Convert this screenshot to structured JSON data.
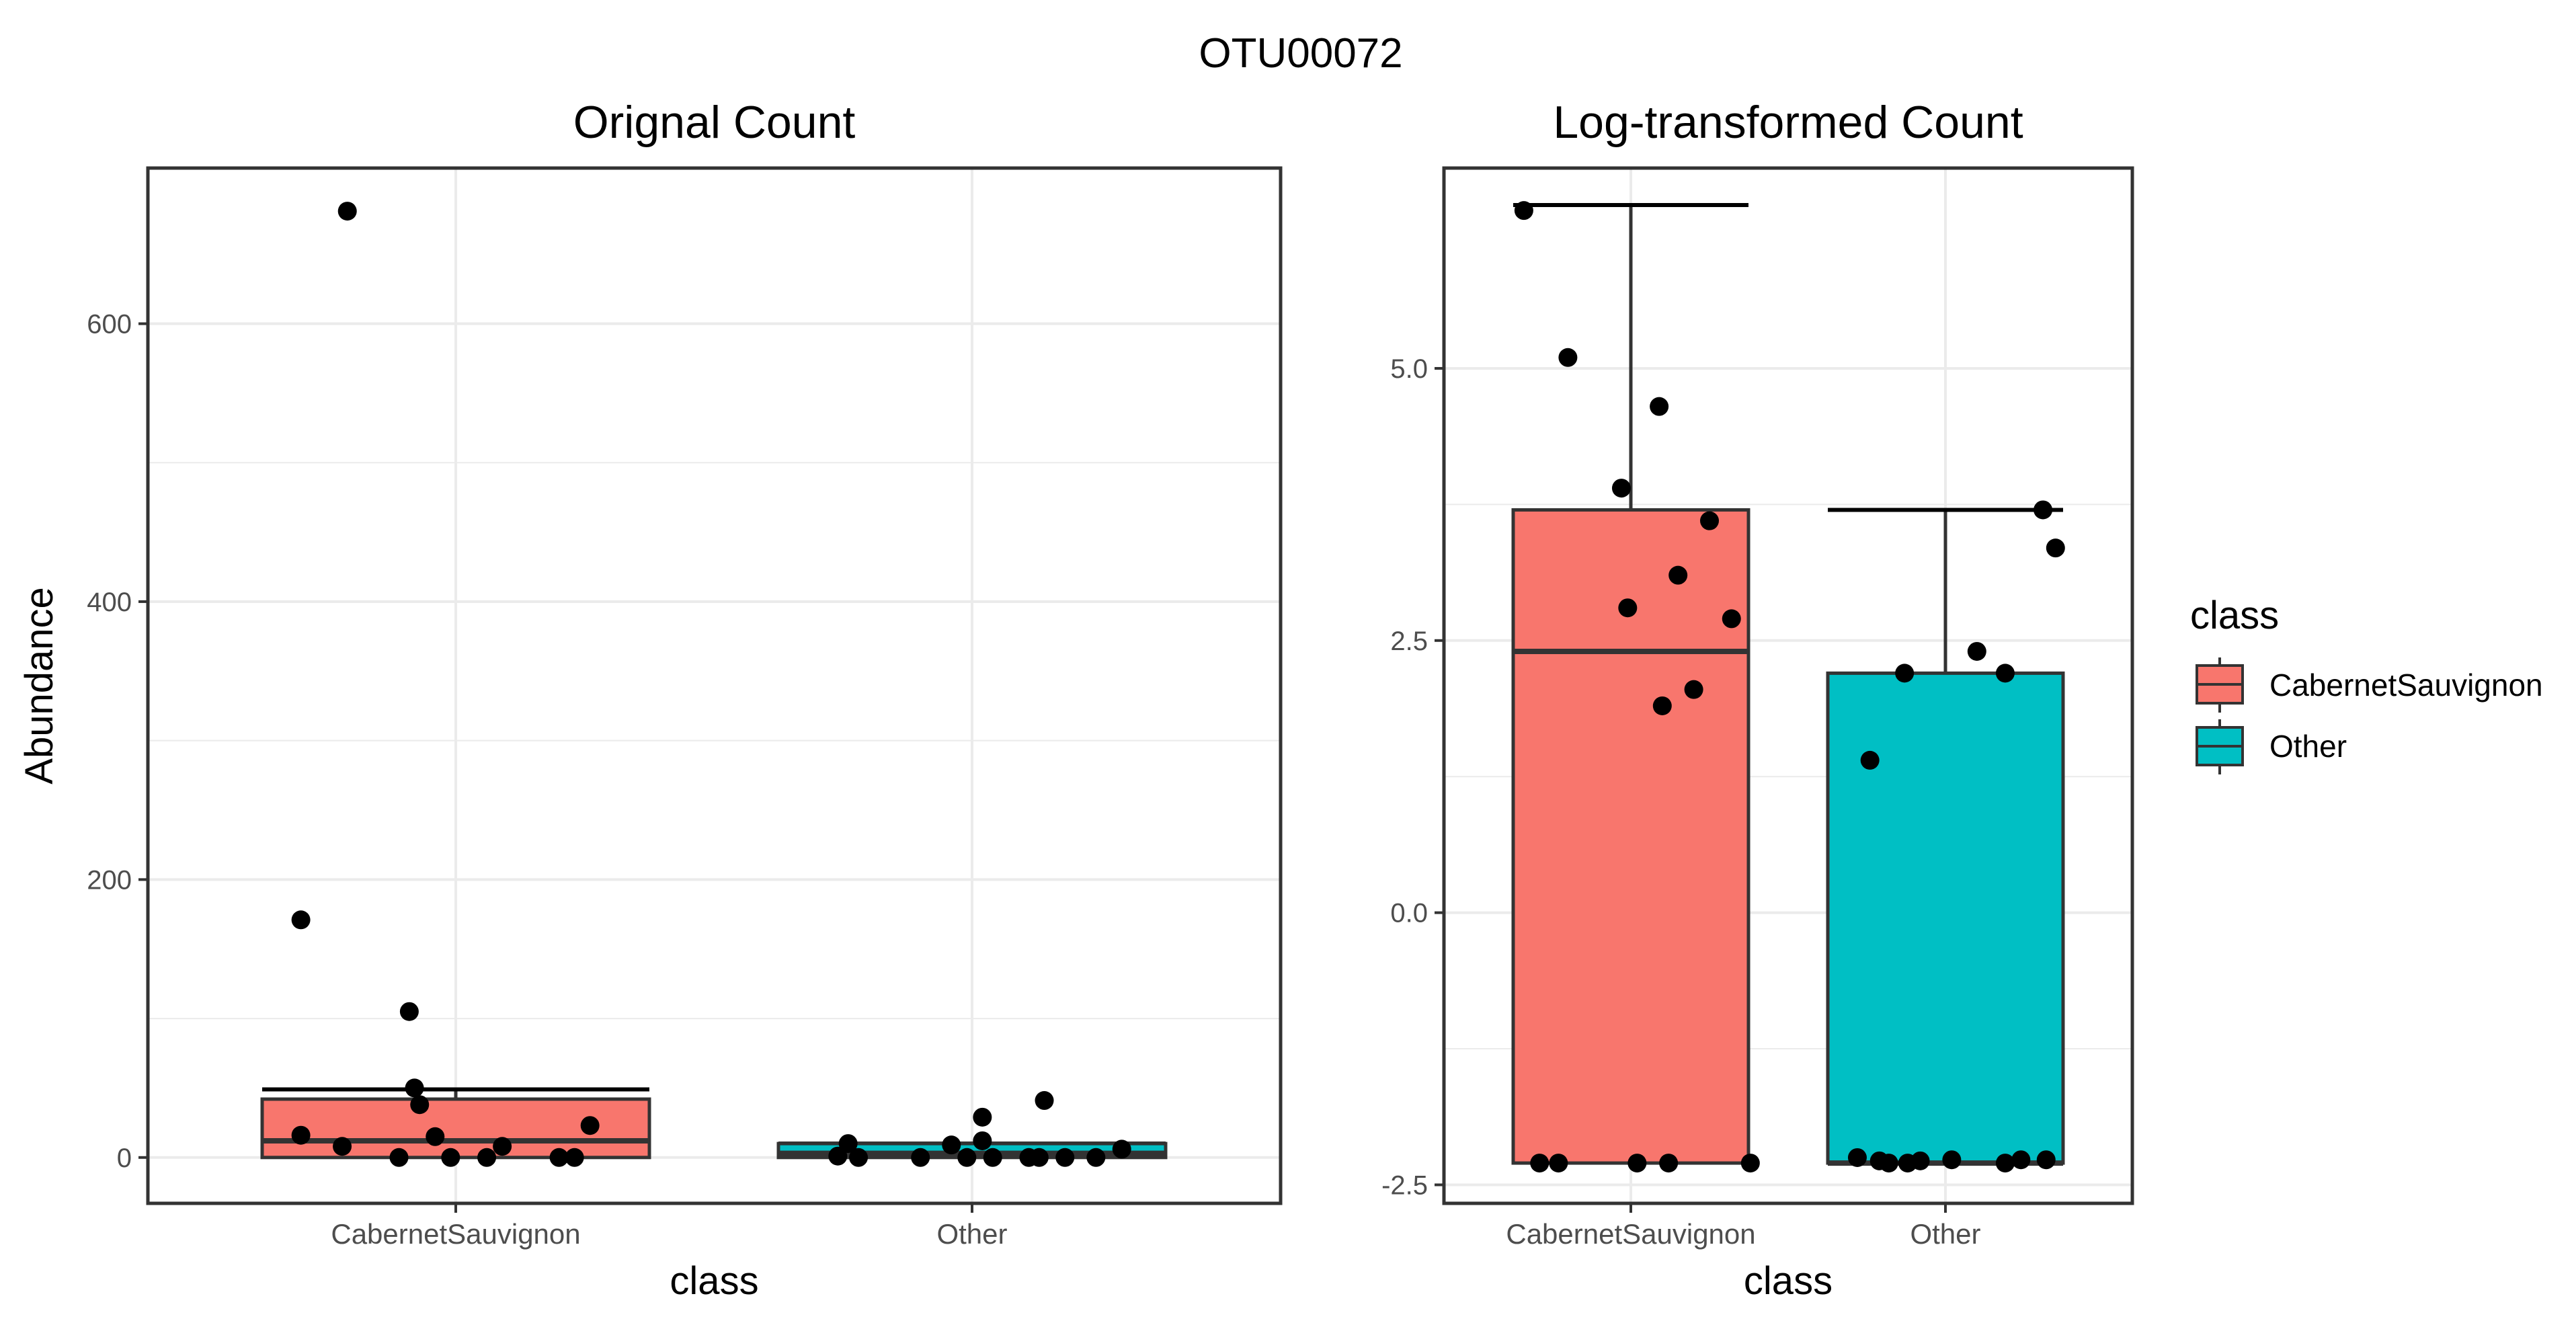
{
  "figure_title": "OTU00072",
  "colors": {
    "CabernetSauvignon": "#F8766D",
    "Other": "#00BFC4",
    "grid": "#ebebeb",
    "panel_border": "#333333",
    "point": "#000000",
    "tick_text": "#4d4d4d"
  },
  "legend": {
    "title": "class",
    "items": [
      {
        "label": "CabernetSauvignon",
        "color": "#F8766D"
      },
      {
        "label": "Other",
        "color": "#00BFC4"
      }
    ]
  },
  "chart_data": [
    {
      "type": "box",
      "title": "Orignal Count",
      "xlabel": "class",
      "ylabel": "Abundance",
      "ylim": [
        -33,
        712
      ],
      "yticks": [
        0,
        200,
        400,
        600
      ],
      "ytick_labels": [
        "0",
        "200",
        "400",
        "600"
      ],
      "categories": [
        "CabernetSauvignon",
        "Other"
      ],
      "boxes": [
        {
          "category": "CabernetSauvignon",
          "q1": 0,
          "median": 12,
          "q3": 42,
          "whisker_low": 0,
          "whisker_high": 49
        },
        {
          "category": "Other",
          "q1": 0,
          "median": 3,
          "q3": 10,
          "whisker_low": 0,
          "whisker_high": 10
        }
      ],
      "points": [
        {
          "category": "CabernetSauvignon",
          "jitter": -0.21,
          "value": 681
        },
        {
          "category": "CabernetSauvignon",
          "jitter": -0.3,
          "value": 171
        },
        {
          "category": "CabernetSauvignon",
          "jitter": -0.09,
          "value": 105
        },
        {
          "category": "CabernetSauvignon",
          "jitter": -0.08,
          "value": 50
        },
        {
          "category": "CabernetSauvignon",
          "jitter": -0.07,
          "value": 38
        },
        {
          "category": "CabernetSauvignon",
          "jitter": 0.26,
          "value": 23
        },
        {
          "category": "CabernetSauvignon",
          "jitter": -0.3,
          "value": 16
        },
        {
          "category": "CabernetSauvignon",
          "jitter": -0.04,
          "value": 15
        },
        {
          "category": "CabernetSauvignon",
          "jitter": -0.22,
          "value": 8
        },
        {
          "category": "CabernetSauvignon",
          "jitter": 0.09,
          "value": 8
        },
        {
          "category": "CabernetSauvignon",
          "jitter": -0.11,
          "value": 0
        },
        {
          "category": "CabernetSauvignon",
          "jitter": -0.01,
          "value": 0
        },
        {
          "category": "CabernetSauvignon",
          "jitter": 0.06,
          "value": 0
        },
        {
          "category": "CabernetSauvignon",
          "jitter": 0.2,
          "value": 0
        },
        {
          "category": "CabernetSauvignon",
          "jitter": 0.23,
          "value": 0
        },
        {
          "category": "Other",
          "jitter": 0.14,
          "value": 41
        },
        {
          "category": "Other",
          "jitter": 0.02,
          "value": 29
        },
        {
          "category": "Other",
          "jitter": 0.02,
          "value": 12
        },
        {
          "category": "Other",
          "jitter": -0.24,
          "value": 10
        },
        {
          "category": "Other",
          "jitter": -0.04,
          "value": 9
        },
        {
          "category": "Other",
          "jitter": 0.29,
          "value": 6
        },
        {
          "category": "Other",
          "jitter": -0.26,
          "value": 1
        },
        {
          "category": "Other",
          "jitter": -0.22,
          "value": 0
        },
        {
          "category": "Other",
          "jitter": -0.1,
          "value": 0
        },
        {
          "category": "Other",
          "jitter": -0.01,
          "value": 0
        },
        {
          "category": "Other",
          "jitter": 0.04,
          "value": 0
        },
        {
          "category": "Other",
          "jitter": 0.11,
          "value": 0
        },
        {
          "category": "Other",
          "jitter": 0.13,
          "value": 0
        },
        {
          "category": "Other",
          "jitter": 0.18,
          "value": 0
        },
        {
          "category": "Other",
          "jitter": 0.24,
          "value": 0
        }
      ]
    },
    {
      "type": "box",
      "title": "Log-transformed Count",
      "xlabel": "class",
      "ylabel": "",
      "ylim": [
        -2.67,
        6.84
      ],
      "yticks": [
        -2.5,
        0.0,
        2.5,
        5.0
      ],
      "ytick_labels": [
        "-2.5",
        "0.0",
        "2.5",
        "5.0"
      ],
      "categories": [
        "CabernetSauvignon",
        "Other"
      ],
      "boxes": [
        {
          "category": "CabernetSauvignon",
          "q1": -2.3,
          "median": 2.4,
          "q3": 3.7,
          "whisker_low": -2.3,
          "whisker_high": 6.5
        },
        {
          "category": "Other",
          "q1": -2.3,
          "median": -2.3,
          "q3": 2.2,
          "whisker_low": -2.3,
          "whisker_high": 3.7
        }
      ],
      "points": [
        {
          "category": "CabernetSauvignon",
          "jitter": -0.34,
          "value": 6.45
        },
        {
          "category": "CabernetSauvignon",
          "jitter": -0.2,
          "value": 5.1
        },
        {
          "category": "CabernetSauvignon",
          "jitter": 0.09,
          "value": 4.65
        },
        {
          "category": "CabernetSauvignon",
          "jitter": -0.03,
          "value": 3.9
        },
        {
          "category": "CabernetSauvignon",
          "jitter": 0.25,
          "value": 3.6
        },
        {
          "category": "CabernetSauvignon",
          "jitter": 0.15,
          "value": 3.1
        },
        {
          "category": "CabernetSauvignon",
          "jitter": -0.01,
          "value": 2.8
        },
        {
          "category": "CabernetSauvignon",
          "jitter": 0.32,
          "value": 2.7
        },
        {
          "category": "CabernetSauvignon",
          "jitter": 0.2,
          "value": 2.05
        },
        {
          "category": "CabernetSauvignon",
          "jitter": 0.1,
          "value": 1.9
        },
        {
          "category": "CabernetSauvignon",
          "jitter": -0.29,
          "value": -2.3
        },
        {
          "category": "CabernetSauvignon",
          "jitter": -0.23,
          "value": -2.3
        },
        {
          "category": "CabernetSauvignon",
          "jitter": 0.02,
          "value": -2.3
        },
        {
          "category": "CabernetSauvignon",
          "jitter": 0.12,
          "value": -2.3
        },
        {
          "category": "CabernetSauvignon",
          "jitter": 0.38,
          "value": -2.3
        },
        {
          "category": "Other",
          "jitter": 0.31,
          "value": 3.7
        },
        {
          "category": "Other",
          "jitter": 0.35,
          "value": 3.35
        },
        {
          "category": "Other",
          "jitter": 0.1,
          "value": 2.4
        },
        {
          "category": "Other",
          "jitter": -0.13,
          "value": 2.2
        },
        {
          "category": "Other",
          "jitter": 0.19,
          "value": 2.2
        },
        {
          "category": "Other",
          "jitter": -0.24,
          "value": 1.4
        },
        {
          "category": "Other",
          "jitter": -0.28,
          "value": -2.25
        },
        {
          "category": "Other",
          "jitter": -0.21,
          "value": -2.28
        },
        {
          "category": "Other",
          "jitter": -0.18,
          "value": -2.3
        },
        {
          "category": "Other",
          "jitter": -0.12,
          "value": -2.3
        },
        {
          "category": "Other",
          "jitter": -0.08,
          "value": -2.28
        },
        {
          "category": "Other",
          "jitter": 0.02,
          "value": -2.27
        },
        {
          "category": "Other",
          "jitter": 0.19,
          "value": -2.3
        },
        {
          "category": "Other",
          "jitter": 0.24,
          "value": -2.27
        },
        {
          "category": "Other",
          "jitter": 0.32,
          "value": -2.27
        }
      ]
    }
  ]
}
